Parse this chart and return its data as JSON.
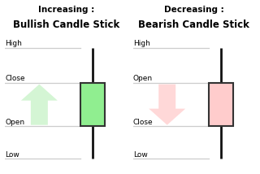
{
  "background_color": "#ffffff",
  "left_title_line1": "Increasing :",
  "left_title_line2": "Bullish Candle Stick",
  "right_title_line1": "Decreasing :",
  "right_title_line2": "Bearish Candle Stick",
  "high": 0.88,
  "low": 0.06,
  "bull_open": 0.3,
  "bull_close": 0.62,
  "bear_open": 0.62,
  "bear_close": 0.3,
  "bull_color": "#90ee90",
  "bull_edge": "#333333",
  "bear_color": "#ffcccc",
  "bear_edge": "#333333",
  "bull_arrow_color": "#d4f5d4",
  "bear_arrow_color": "#ffd8d8",
  "line_color": "#cccccc",
  "wick_color": "#111111",
  "font_size_title1": 7.5,
  "font_size_title2": 8.5,
  "font_size_label": 6.5
}
